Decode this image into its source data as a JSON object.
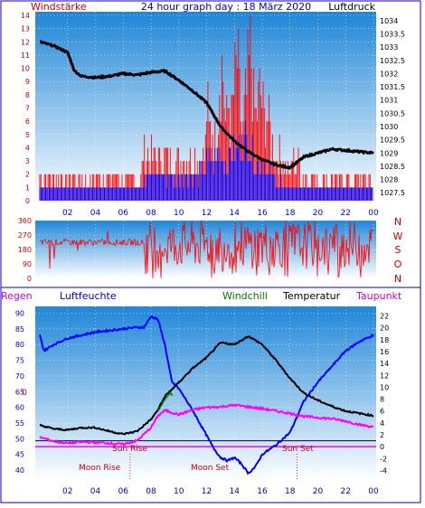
{
  "header": {
    "title": "24 hour graph day : 18 März 2020",
    "left_label": "Windstärke",
    "right_label": "Luftdruck"
  },
  "wind_dir_labels": [
    "N",
    "W",
    "S",
    "O",
    "N"
  ],
  "bottom_labels": {
    "regen": "Regen",
    "luftfeuchte": "Luftfeuchte",
    "windchill": "Windchill",
    "temperatur": "Temperatur",
    "taupunkt": "Taupunkt"
  },
  "annotations": {
    "sun_rise": "Sun Rise",
    "sun_set": "Sun Set",
    "moon_rise": "Moon Rise",
    "moon_set": "Moon Set",
    "zero_marker": "0"
  },
  "colors": {
    "sky_top": "#1f86d8",
    "sky_bottom": "#ffffff",
    "wind_gust": "#ff0000",
    "wind_avg": "#0000ff",
    "pressure": "#000000",
    "winddir": "#ff0000",
    "humidity": "#0000ff",
    "temperature": "#000000",
    "dewpoint": "#ff00ff",
    "windchill": "#008000",
    "axis_left": "#cc0000",
    "axis_right": "#000000"
  },
  "chart_data": [
    {
      "type": "line",
      "name": "wind_pressure",
      "x_ticks": [
        "02",
        "04",
        "06",
        "08",
        "10",
        "12",
        "14",
        "16",
        "18",
        "20",
        "22",
        "00"
      ],
      "y_left_ticks": [
        "0",
        "1",
        "2",
        "3",
        "4",
        "5",
        "6",
        "7",
        "8",
        "9",
        "10",
        "11",
        "12",
        "13",
        "14"
      ],
      "y_right_ticks": [
        "1027.5",
        "1028",
        "1028.5",
        "1029",
        "1029.5",
        "1030",
        "1030.5",
        "1031",
        "1031.5",
        "1032",
        "1032.5",
        "1033",
        "1033.5",
        "1034"
      ],
      "ylim_left": [
        0,
        14
      ],
      "ylim_right": [
        1027.2,
        1034.2
      ],
      "pressure": {
        "x": [
          0,
          1,
          2,
          2.5,
          3,
          4,
          5,
          6,
          7,
          8,
          9,
          10,
          11,
          12,
          13,
          14,
          15,
          16,
          17,
          18,
          18.5,
          19,
          20,
          21,
          22,
          23,
          24
        ],
        "y": [
          1033.2,
          1033.05,
          1032.8,
          1032.1,
          1031.9,
          1031.85,
          1031.9,
          1032.0,
          1031.95,
          1032.05,
          1032.1,
          1031.75,
          1031.35,
          1030.9,
          1030.0,
          1029.45,
          1029.05,
          1028.75,
          1028.55,
          1028.45,
          1028.65,
          1028.85,
          1029.0,
          1029.15,
          1029.1,
          1029.05,
          1029.0
        ]
      },
      "wind_gust": {
        "x": [
          0,
          7.3,
          7.4,
          11.9,
          12,
          12.2,
          12.4,
          12.6,
          12.8,
          13,
          13.2,
          13.4,
          13.6,
          13.8,
          14,
          14.2,
          14.4,
          14.6,
          14.8,
          15,
          15.2,
          15.4,
          15.6,
          15.8,
          16,
          16.2,
          16.4,
          16.6,
          16.8,
          17,
          17.2,
          17.4,
          17.6,
          17.8,
          18,
          18.2,
          18.4,
          18.6,
          18.8,
          19,
          24
        ],
        "y": [
          2,
          2,
          4,
          4,
          9,
          6,
          7,
          5,
          8,
          13,
          11,
          6,
          9,
          7,
          10,
          13,
          8,
          6,
          9,
          11,
          14,
          8,
          7,
          10,
          9,
          7,
          8,
          6,
          5,
          4,
          4,
          4,
          3,
          3,
          2,
          4,
          3,
          4,
          2,
          2,
          2
        ]
      },
      "wind_avg": {
        "x": [
          0,
          7.3,
          7.4,
          11.9,
          12,
          12.5,
          13,
          13.5,
          14,
          14.5,
          15,
          15.5,
          16,
          16.5,
          17,
          17.5,
          18,
          18.5,
          19,
          24
        ],
        "y": [
          1,
          1,
          2,
          2,
          3,
          3,
          4,
          3,
          4,
          4,
          5,
          3,
          3,
          2,
          2,
          1,
          1,
          1,
          1,
          1
        ]
      }
    },
    {
      "type": "line",
      "name": "wind_direction",
      "y_ticks": [
        "0",
        "90",
        "180",
        "270",
        "360"
      ],
      "ylim": [
        0,
        360
      ],
      "baseline_value": 225
    },
    {
      "type": "line",
      "name": "climate",
      "y_left_ticks": [
        "40",
        "45",
        "50",
        "55",
        "60",
        "65",
        "70",
        "75",
        "80",
        "85",
        "90"
      ],
      "y_right_ticks": [
        "-4",
        "-2",
        "0",
        "2",
        "4",
        "6",
        "8",
        "10",
        "12",
        "14",
        "16",
        "18",
        "20",
        "22"
      ],
      "ylim_left": [
        38,
        91
      ],
      "ylim_right": [
        -5,
        23
      ],
      "zero_line": 0,
      "horizontal_ref": 1,
      "humidity": {
        "x": [
          0,
          0.3,
          1,
          2,
          3,
          4,
          5,
          6,
          7,
          7.5,
          8,
          8.5,
          9,
          9.5,
          10,
          11,
          12,
          12.5,
          13,
          13.5,
          14,
          14.5,
          15,
          15.5,
          16,
          17,
          18,
          19,
          20,
          21,
          22,
          23,
          24
        ],
        "y": [
          83,
          78,
          80,
          82,
          83,
          84,
          84.5,
          85,
          85.5,
          85.5,
          89,
          88,
          80,
          68,
          66,
          59,
          51,
          47,
          44,
          43,
          44,
          42,
          39,
          41,
          45,
          48,
          52,
          62,
          68,
          73,
          78,
          81,
          83
        ]
      },
      "temperature": {
        "x": [
          0,
          1,
          2,
          3,
          4,
          5,
          6,
          7,
          8,
          8.5,
          9,
          10,
          11,
          12,
          13,
          14,
          15,
          16,
          17,
          18,
          19,
          20,
          21,
          22,
          23,
          24
        ],
        "y": [
          3.6,
          3.0,
          2.8,
          3.2,
          3.2,
          2.6,
          2.1,
          2.6,
          4.6,
          6.2,
          8.5,
          10.8,
          13.2,
          15.0,
          17.5,
          17.2,
          18.6,
          17.2,
          14.5,
          11.5,
          9.0,
          7.8,
          6.8,
          6.0,
          5.6,
          5.2
        ]
      },
      "dewpoint": {
        "x": [
          0,
          1,
          2,
          3,
          4,
          5,
          6,
          7,
          8,
          8.5,
          9,
          10,
          11,
          12,
          13,
          14,
          15,
          16,
          17,
          18,
          19,
          20,
          21,
          22,
          23,
          24
        ],
        "y": [
          1.6,
          0.9,
          0.6,
          0.8,
          0.7,
          0.6,
          0.4,
          1.0,
          3.2,
          5.2,
          6.1,
          5.4,
          6.2,
          6.6,
          6.7,
          7.0,
          6.7,
          6.4,
          6.0,
          5.6,
          5.1,
          4.9,
          4.7,
          4.3,
          3.7,
          3.3
        ]
      },
      "windchill": {
        "x": [
          8.5,
          9.0,
          9.4,
          9.6
        ],
        "y": [
          6.0,
          8.0,
          9.0,
          8.5
        ]
      }
    }
  ]
}
